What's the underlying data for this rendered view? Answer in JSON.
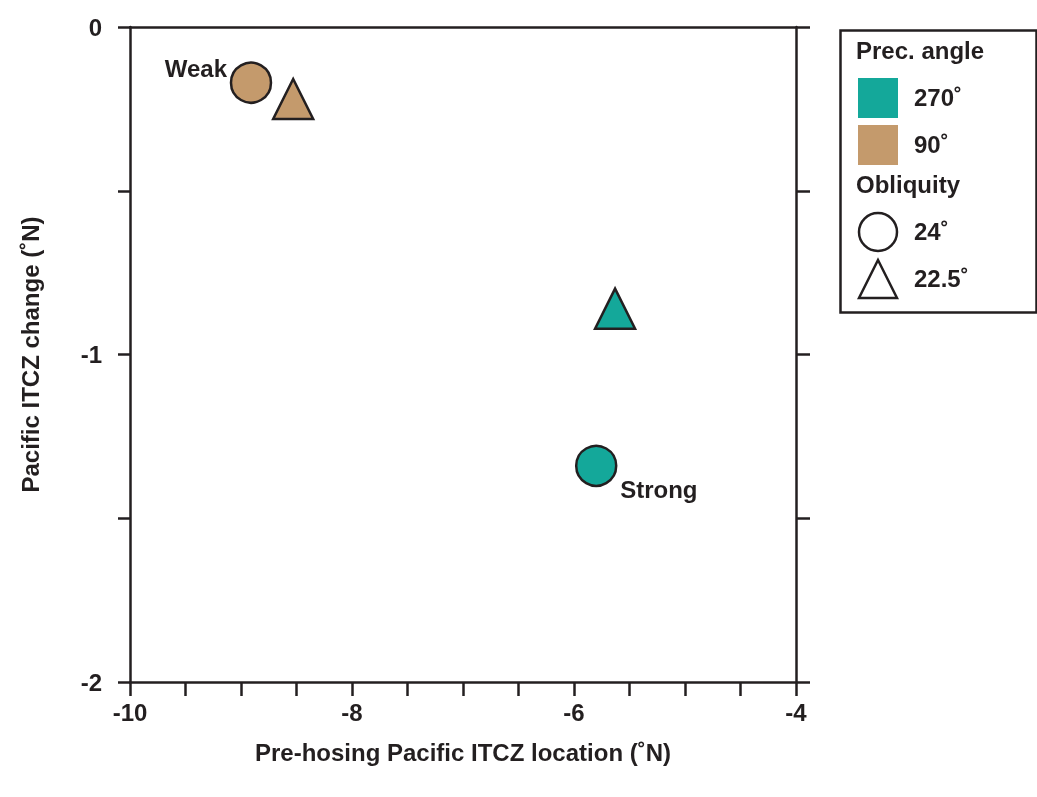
{
  "chart_data": {
    "type": "scatter",
    "xlabel": "Pre-hosing Pacific ITCZ location (˚N)",
    "ylabel": "Pacific ITCZ change (˚N)",
    "xlim": [
      -10,
      -4
    ],
    "xticks": [
      -10,
      {
        "value": -9.5,
        "label": null
      },
      {
        "value": -9,
        "label": null
      },
      {
        "value": -8.5,
        "label": null
      },
      -8,
      {
        "value": -7.5,
        "label": null
      },
      {
        "value": -7,
        "label": null
      },
      {
        "value": -6.5,
        "label": null
      },
      -6,
      {
        "value": -5.5,
        "label": null
      },
      {
        "value": -5,
        "label": null
      },
      {
        "value": -4.5,
        "label": null
      },
      -4
    ],
    "ylim": [
      -2,
      0
    ],
    "yticks": [
      -2,
      {
        "value": -1.5,
        "label": null
      },
      -1,
      {
        "value": -0.5,
        "label": null
      },
      0
    ],
    "grid": false,
    "legend": "right",
    "legend_title": [
      "Prec. angle",
      "Obliquity"
    ],
    "series": [
      {
        "color": "#c49a6c",
        "marker": "circle",
        "x": [
          -8.91
        ],
        "values": [
          -0.17
        ]
      },
      {
        "color": "#c49a6c",
        "marker": "triangle",
        "x": [
          -8.53
        ],
        "values": [
          -0.22
        ]
      },
      {
        "color": "#14a89a",
        "marker": "triangle",
        "x": [
          -5.63
        ],
        "values": [
          -0.86
        ]
      },
      {
        "color": "#14a89a",
        "marker": "circle",
        "x": [
          -5.8
        ],
        "values": [
          -1.34
        ]
      },
      {
        "name": "270˚",
        "color": "#14a89a",
        "marker": "square"
      },
      {
        "name": "90˚",
        "color": "#c49a6c",
        "marker": "square"
      },
      {
        "name": "24˚",
        "color": "#231f20",
        "marker": "circle"
      },
      {
        "name": "22.5˚",
        "color": "#231f20",
        "marker": "triangle"
      }
    ],
    "annotations": [
      {
        "text": "Weak",
        "x": -8.91,
        "y": -0.17
      },
      {
        "text": "Strong",
        "x": -5.8,
        "y": -1.34
      }
    ]
  }
}
